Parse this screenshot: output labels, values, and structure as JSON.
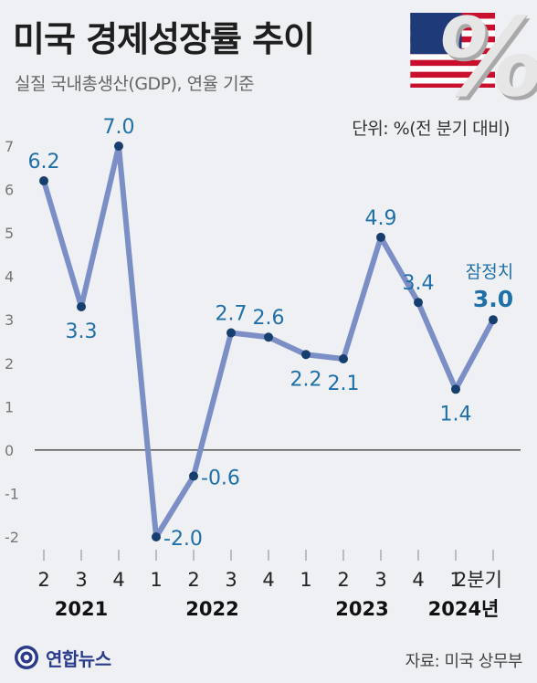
{
  "header": {
    "title": "미국 경제성장률 추이",
    "subtitle": "실질 국내총생산(GDP), 연율 기준",
    "unit": "단위: %(전 분기 대비)"
  },
  "footer": {
    "logo_text": "연합뉴스",
    "source": "자료: 미국 상무부"
  },
  "colors": {
    "background": "#eef0f3",
    "line": "#7b8fc6",
    "marker": "#163e6e",
    "value_label": "#1f6fa8",
    "zero_line": "#333333"
  },
  "icons": [
    "us-flag-icon",
    "percent-icon",
    "yonhap-logo-icon"
  ],
  "chart_data": {
    "type": "line",
    "title": "미국 경제성장률 추이",
    "subtitle": "실질 국내총생산(GDP), 연율 기준",
    "ylabel": "",
    "xlabel": "",
    "unit_note": "단위: %(전 분기 대비)",
    "ylim": [
      -2,
      7
    ],
    "yticks": [
      -2,
      -1,
      0,
      1,
      2,
      3,
      4,
      5,
      6,
      7
    ],
    "ytick_labels": [
      "-2",
      "-1",
      "0",
      "1",
      "2",
      "3",
      "4",
      "5",
      "6",
      "7"
    ],
    "categories": [
      "2",
      "3",
      "4",
      "1",
      "2",
      "3",
      "4",
      "1",
      "2",
      "3",
      "4",
      "1",
      "2분기"
    ],
    "years": [
      {
        "label": "2021",
        "start": 0,
        "end": 2
      },
      {
        "label": "2022",
        "start": 3,
        "end": 6
      },
      {
        "label": "2023",
        "start": 7,
        "end": 10
      },
      {
        "label": "2024년",
        "start": 11,
        "end": 12
      }
    ],
    "values": [
      6.2,
      3.3,
      7.0,
      -2.0,
      -0.6,
      2.7,
      2.6,
      2.2,
      2.1,
      4.9,
      3.4,
      1.4,
      3.0
    ],
    "value_labels": [
      "6.2",
      "3.3",
      "7.0",
      "-2.0",
      "-0.6",
      "2.7",
      "2.6",
      "2.2",
      "2.1",
      "4.9",
      "3.4",
      "1.4",
      "3.0"
    ],
    "label_positions": [
      "above",
      "below",
      "above",
      "right",
      "right",
      "above",
      "above",
      "below",
      "below",
      "above",
      "above",
      "below",
      "above"
    ],
    "annotations": [
      {
        "index": 12,
        "text": "잠정치"
      }
    ],
    "grid": false
  }
}
